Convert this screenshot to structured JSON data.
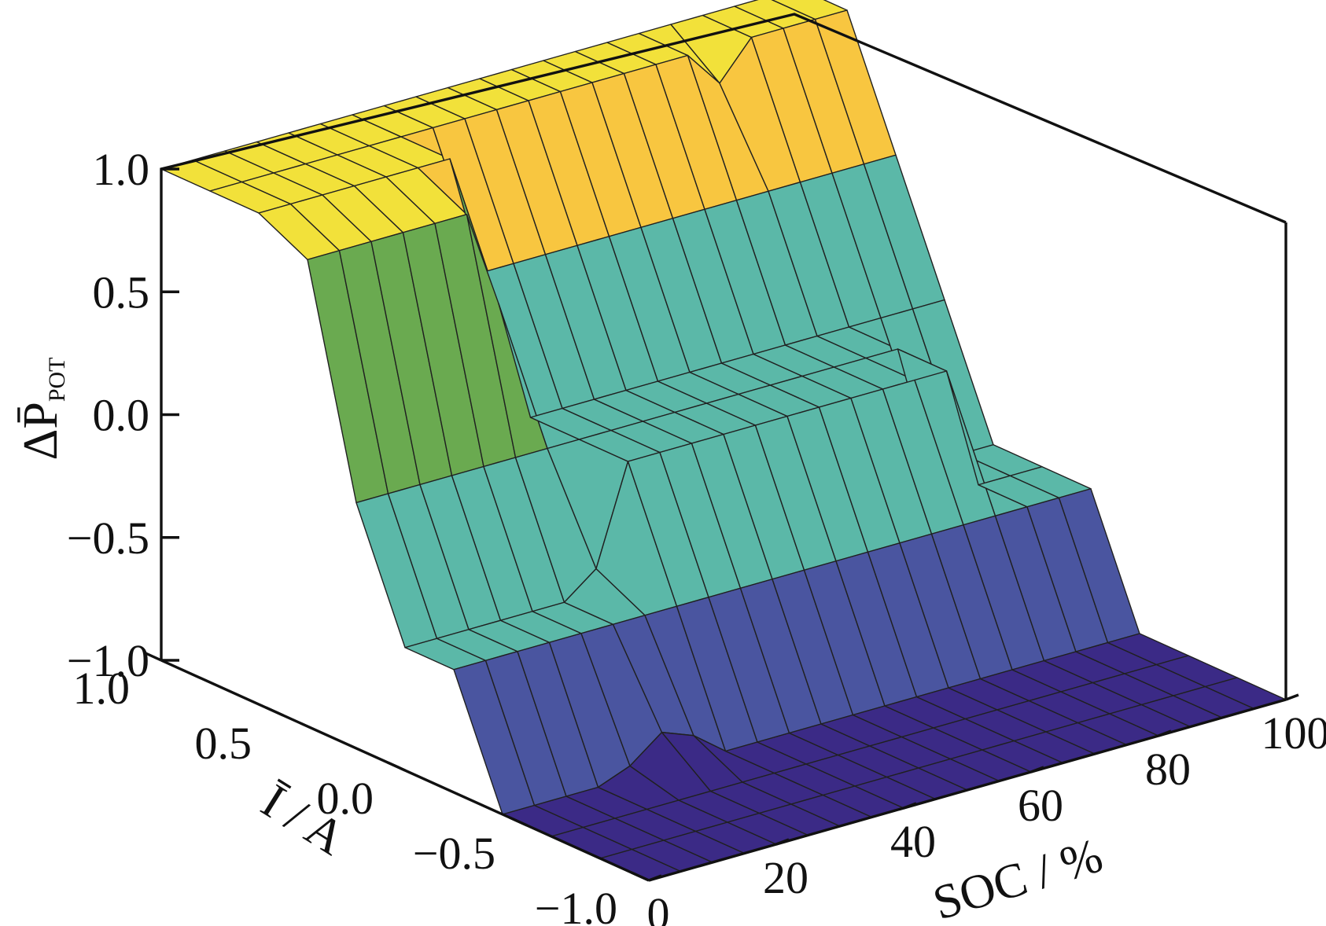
{
  "chart_data": {
    "type": "surface",
    "xlabel": "SOC / %",
    "ylabel": "Ī / A",
    "zlabel": "ΔP̄",
    "zlabel_subscript": "POT",
    "xlim": [
      0,
      100
    ],
    "ylim": [
      -1.0,
      1.0
    ],
    "zlim": [
      -1.0,
      1.0
    ],
    "x_ticks": [
      "0",
      "20",
      "40",
      "60",
      "80",
      "100"
    ],
    "y_ticks": [
      "−1.0",
      "−0.5",
      "0.0",
      "0.5",
      "1.0"
    ],
    "z_ticks": [
      "−1.0",
      "−0.5",
      "0.0",
      "0.5",
      "1.0"
    ],
    "soc": [
      0,
      5,
      10,
      15,
      20,
      25,
      30,
      35,
      40,
      45,
      50,
      55,
      60,
      65,
      70,
      75,
      80,
      85,
      90,
      95,
      100
    ],
    "current": [
      -1.0,
      -0.8,
      -0.6,
      -0.4,
      -0.2,
      0.0,
      0.2,
      0.4,
      0.6,
      0.8,
      1.0
    ],
    "delta_p_pot": [
      [
        -1,
        -1,
        -1,
        -1,
        -1,
        -1,
        -1,
        -1,
        -1,
        -1,
        -1,
        -1,
        -1,
        -1,
        -1,
        -1,
        -1,
        -1,
        -1,
        -1,
        -1
      ],
      [
        -1,
        -1,
        -1,
        -1,
        -1,
        -1,
        -1,
        -1,
        -1,
        -1,
        -1,
        -1,
        -1,
        -1,
        -1,
        -1,
        -1,
        -1,
        -1,
        -1,
        -1
      ],
      [
        -1,
        -1,
        -1,
        -1,
        -1,
        -1,
        -1,
        -1,
        -1,
        -1,
        -1,
        -1,
        -1,
        -1,
        -1,
        -1,
        -1,
        -1,
        -1,
        -1,
        -1
      ],
      [
        -1,
        -1,
        -1,
        -1,
        -0.95,
        -0.85,
        -0.9,
        -1,
        -1,
        -1,
        -1,
        -1,
        -1,
        -1,
        -1,
        -1,
        -1,
        -1,
        -1,
        -1,
        -1
      ],
      [
        -0.5,
        -0.5,
        -0.5,
        -0.5,
        -0.5,
        -0.5,
        -0.5,
        -0.5,
        -0.5,
        -0.5,
        -0.5,
        -0.5,
        -0.5,
        -0.5,
        -0.5,
        -0.5,
        -0.5,
        -0.5,
        -0.5,
        -0.5,
        -0.5
      ],
      [
        -0.5,
        -0.5,
        -0.5,
        -0.5,
        -0.5,
        -0.5,
        -0.4,
        0,
        0,
        0,
        0,
        0,
        0,
        0,
        0,
        0,
        0,
        0,
        -0.5,
        -0.5,
        -0.5
      ],
      [
        0,
        0,
        0,
        0,
        0,
        0,
        0,
        0,
        0,
        0,
        0,
        0,
        0,
        0,
        0,
        0,
        0,
        0,
        -0.5,
        -0.5,
        -0.5
      ],
      [
        0.9,
        0.9,
        0.9,
        0.9,
        0.9,
        0.9,
        0.5,
        0,
        0,
        0,
        0,
        0,
        0,
        0,
        0,
        0,
        0,
        0,
        0,
        0,
        0
      ],
      [
        1,
        1,
        1,
        1,
        1,
        1,
        1,
        0.5,
        0.5,
        0.5,
        0.5,
        0.5,
        0.5,
        0.5,
        0.5,
        0.5,
        0.5,
        0.5,
        0.5,
        0.5,
        0.5
      ],
      [
        1,
        1,
        1,
        1,
        1,
        1,
        1,
        1,
        1,
        1,
        1,
        1,
        1,
        1,
        1,
        1,
        0.85,
        1,
        1,
        1,
        1
      ],
      [
        1,
        1,
        1,
        1,
        1,
        1,
        1,
        1,
        1,
        1,
        1,
        1,
        1,
        1,
        1,
        1,
        1,
        1,
        1,
        1,
        1
      ]
    ],
    "colormap": [
      "#3b2a86",
      "#4a55a0",
      "#5bb8a8",
      "#6aaa50",
      "#f2e13a",
      "#f8c640"
    ],
    "grid": false
  }
}
